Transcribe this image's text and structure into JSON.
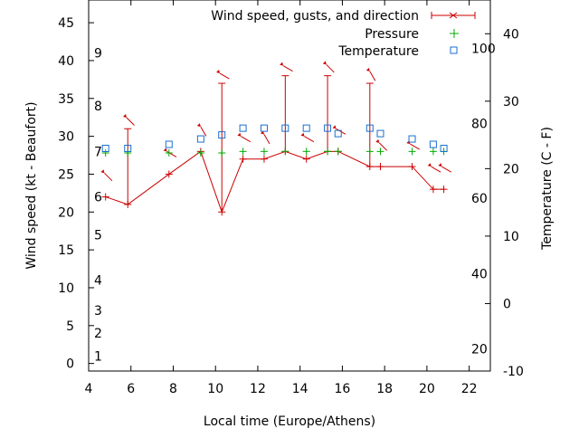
{
  "chart_data": {
    "type": "line",
    "xlabel": "Local time (Europe/Athens)",
    "ylabel": "Wind speed (kt - Beaufort)",
    "y2label": "Temperature (C - F)",
    "xlim": [
      4,
      23
    ],
    "ylim": [
      -1,
      48
    ],
    "y2lim": [
      -10,
      45
    ],
    "grid": false,
    "legend_position": "top-right",
    "x_ticks": [
      "4",
      "6",
      "8",
      "10",
      "12",
      "14",
      "16",
      "18",
      "20",
      "22"
    ],
    "y_ticks": [
      "0",
      "5",
      "10",
      "15",
      "20",
      "25",
      "30",
      "35",
      "40",
      "45"
    ],
    "y2_ticks": [
      "-10",
      "0",
      "10",
      "20",
      "30",
      "40"
    ],
    "beaufort_labels": [
      {
        "text": "1",
        "y": 1
      },
      {
        "text": "2",
        "y": 4
      },
      {
        "text": "3",
        "y": 7
      },
      {
        "text": "4",
        "y": 11
      },
      {
        "text": "5",
        "y": 17
      },
      {
        "text": "6",
        "y": 22
      },
      {
        "text": "7",
        "y": 28
      },
      {
        "text": "8",
        "y": 34
      },
      {
        "text": "9",
        "y": 41
      }
    ],
    "fahrenheit_labels": [
      {
        "text": "20",
        "y2": -6.7
      },
      {
        "text": "40",
        "y2": 4.4
      },
      {
        "text": "60",
        "y2": 15.6
      },
      {
        "text": "80",
        "y2": 26.7
      },
      {
        "text": "100",
        "y2": 37.8
      }
    ],
    "series": [
      {
        "name": "Wind speed, gusts, and direction",
        "color": "#cc0000",
        "points": [
          {
            "x": 4.8,
            "y": 22,
            "gust": null,
            "dir": 315
          },
          {
            "x": 5.85,
            "y": 21,
            "gust": 31,
            "dir": 315
          },
          {
            "x": 7.8,
            "y": 25,
            "gust": null,
            "dir": 300
          },
          {
            "x": 9.3,
            "y": 28,
            "gust": null,
            "dir": 330
          },
          {
            "x": 10.3,
            "y": 20,
            "gust": 37,
            "dir": 300
          },
          {
            "x": 11.3,
            "y": 27,
            "gust": null,
            "dir": 300
          },
          {
            "x": 12.3,
            "y": 27,
            "gust": null,
            "dir": 330
          },
          {
            "x": 13.3,
            "y": 28,
            "gust": 38,
            "dir": 300
          },
          {
            "x": 14.3,
            "y": 27,
            "gust": null,
            "dir": 300
          },
          {
            "x": 15.3,
            "y": 28,
            "gust": 38,
            "dir": 315
          },
          {
            "x": 15.8,
            "y": 28,
            "gust": null,
            "dir": 300
          },
          {
            "x": 17.3,
            "y": 26,
            "gust": 37,
            "dir": 330
          },
          {
            "x": 17.8,
            "y": 26,
            "gust": null,
            "dir": 315
          },
          {
            "x": 19.3,
            "y": 26,
            "gust": null,
            "dir": 300
          },
          {
            "x": 20.3,
            "y": 23,
            "gust": null,
            "dir": 300
          },
          {
            "x": 20.8,
            "y": 23,
            "gust": null,
            "dir": 300
          }
        ]
      },
      {
        "name": "Pressure",
        "color": "#00aa00",
        "marker": "plus",
        "x": [
          4.8,
          5.85,
          7.8,
          9.3,
          10.3,
          11.3,
          12.3,
          13.3,
          14.3,
          15.3,
          15.8,
          17.3,
          17.8,
          19.3,
          20.3,
          20.8
        ],
        "y": [
          27.8,
          27.8,
          27.8,
          27.8,
          27.8,
          28,
          28,
          28,
          28,
          28,
          28,
          28,
          28,
          28,
          28,
          28
        ]
      },
      {
        "name": "Temperature",
        "color": "#1a6fd0",
        "marker": "square",
        "axis": "y2",
        "x": [
          4.8,
          5.85,
          7.8,
          9.3,
          10.3,
          11.3,
          12.3,
          13.3,
          14.3,
          15.3,
          15.8,
          17.3,
          17.8,
          19.3,
          20.3,
          20.8
        ],
        "y": [
          23,
          23,
          23.6,
          24.4,
          25,
          26,
          26,
          26,
          26,
          26,
          25.2,
          26,
          25.2,
          24.4,
          23.6,
          23
        ]
      }
    ]
  }
}
